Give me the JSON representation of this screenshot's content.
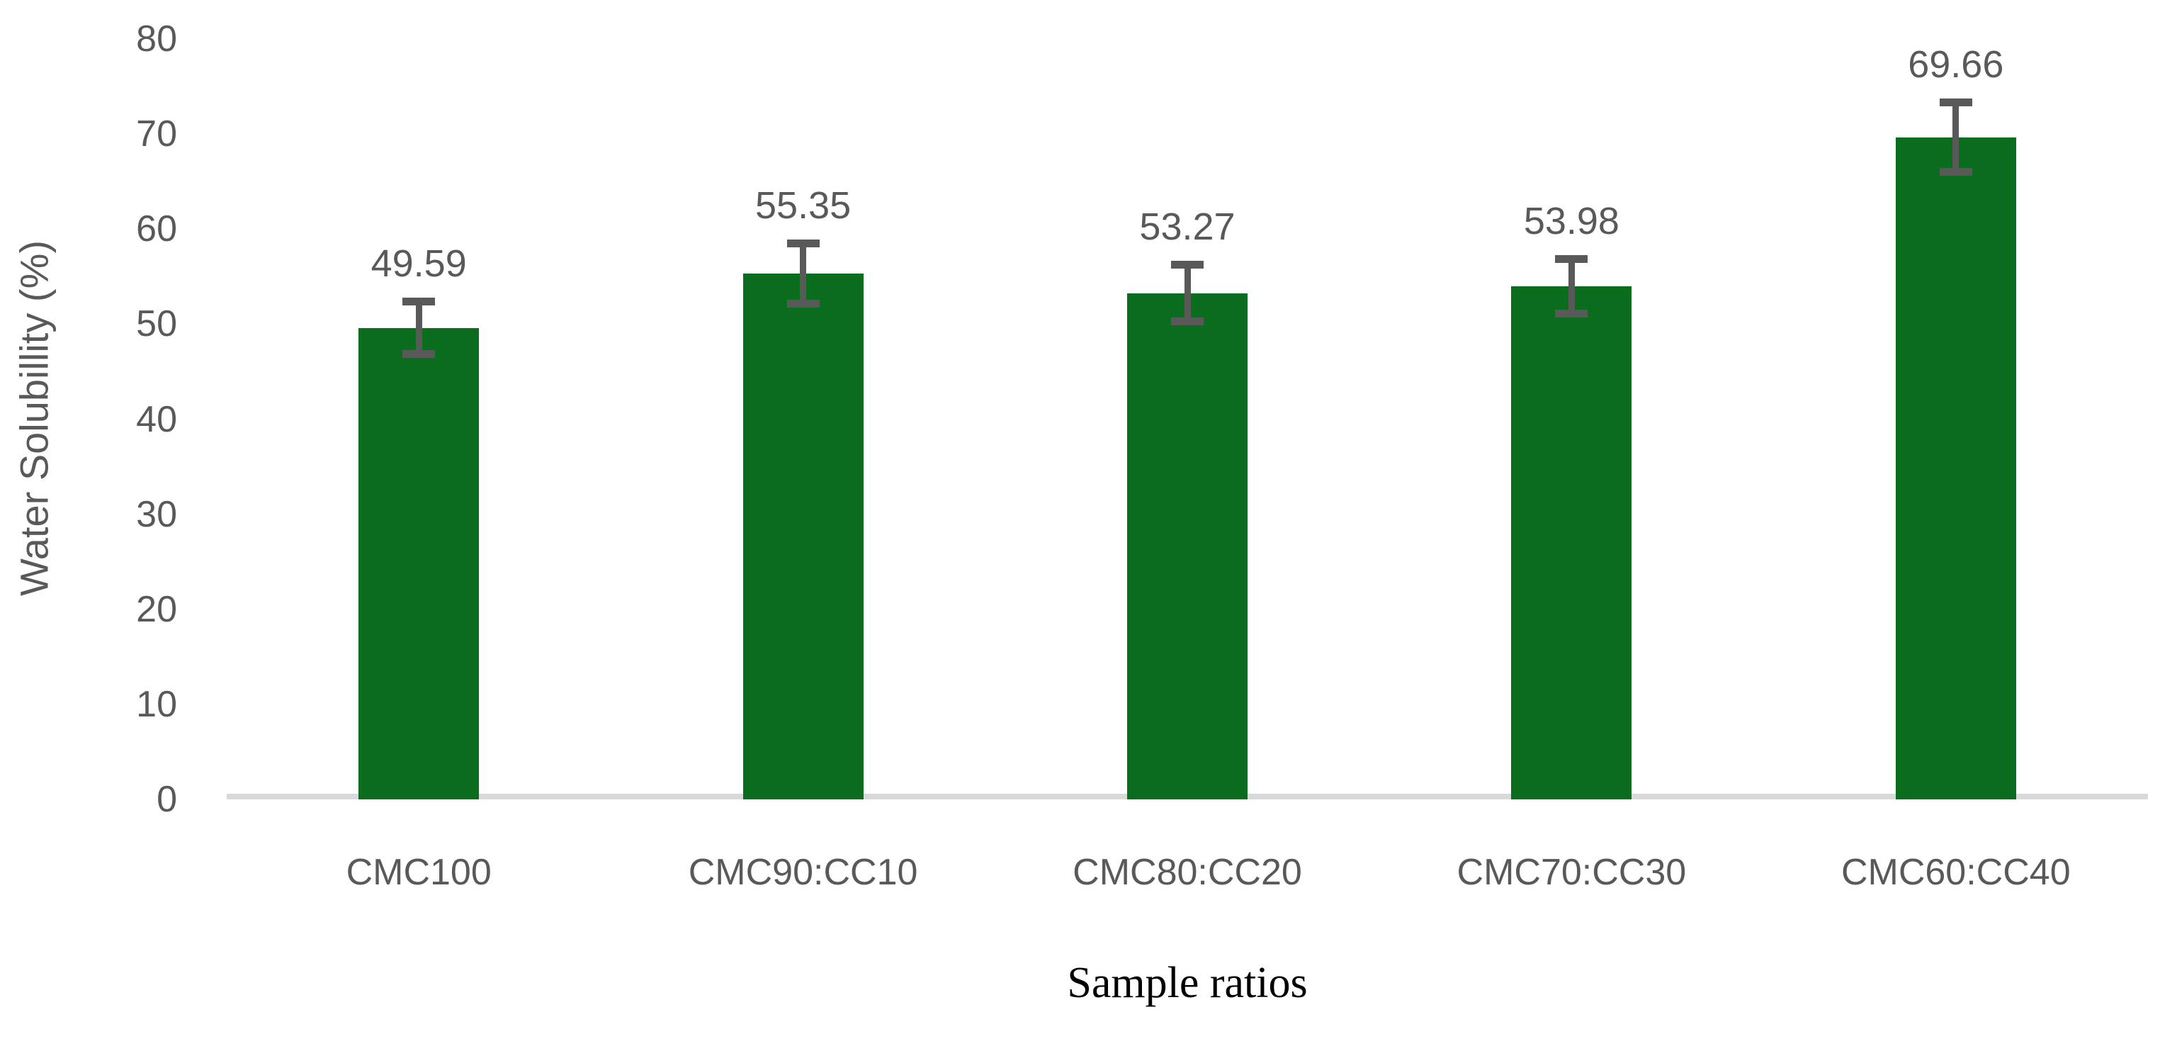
{
  "chart_data": {
    "type": "bar",
    "categories": [
      "CMC100",
      "CMC90:CC10",
      "CMC80:CC20",
      "CMC70:CC30",
      "CMC60:CC40"
    ],
    "values": [
      49.59,
      55.35,
      53.27,
      53.98,
      69.66
    ],
    "data_labels": [
      "49.59",
      "55.35",
      "53.27",
      "53.98",
      "69.66"
    ],
    "errors": [
      2.5,
      2.9,
      2.7,
      2.6,
      3.4
    ],
    "title": "",
    "xlabel": "Sample ratios",
    "ylabel": "Water Solubillity (%)",
    "ylim": [
      0,
      80
    ],
    "yticks": [
      0,
      10,
      20,
      30,
      40,
      50,
      60,
      70,
      80
    ],
    "grid": false,
    "legend": "none",
    "bar_color": "#0a6d1e",
    "error_bar_color": "#595959",
    "axis_line_color": "#d9d9d9",
    "tick_text_color": "#595959",
    "xlabel_color": "#000000"
  }
}
